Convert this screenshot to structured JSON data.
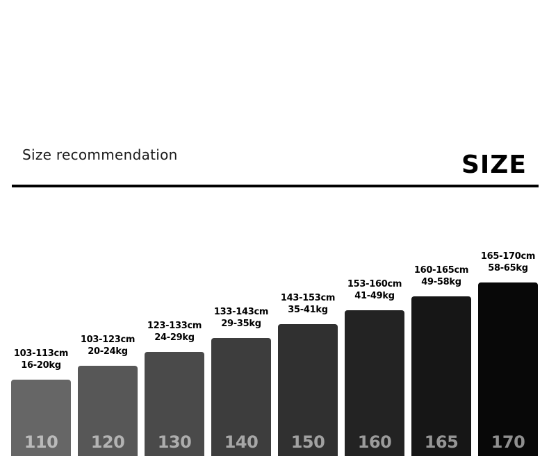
{
  "header": {
    "subtitle": "Size recommendation",
    "title": "SIZE"
  },
  "chart_data": {
    "type": "bar",
    "categories": [
      "110",
      "120",
      "130",
      "140",
      "150",
      "160",
      "165",
      "170"
    ],
    "series": [
      {
        "values": [
          110,
          120,
          130,
          140,
          150,
          160,
          165,
          170
        ],
        "colors": [
          "#666666",
          "#575757",
          "#4a4a4a",
          "#3d3d3d",
          "#303030",
          "#232323",
          "#161616",
          "#080808"
        ]
      }
    ],
    "height_labels": [
      "103-113cm",
      "103-123cm",
      "123-133cm",
      "133-143cm",
      "143-153cm",
      "153-160cm",
      "160-165cm",
      "165-170cm"
    ],
    "weight_labels": [
      "16-20kg",
      "20-24kg",
      "24-29kg",
      "29-35kg",
      "35-41kg",
      "41-49kg",
      "49-58kg",
      "58-65kg"
    ],
    "title": "",
    "xlabel": "",
    "ylabel": ""
  }
}
